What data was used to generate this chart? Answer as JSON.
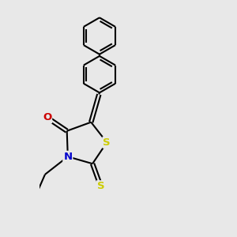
{
  "bg_color": "#e8e8e8",
  "bond_color": "#000000",
  "N_color": "#0000cc",
  "O_color": "#cc0000",
  "S_color": "#cccc00",
  "line_width": 1.5,
  "font_size_atom": 9.5,
  "xlim": [
    -1.0,
    3.5
  ],
  "ylim": [
    -2.8,
    3.8
  ]
}
